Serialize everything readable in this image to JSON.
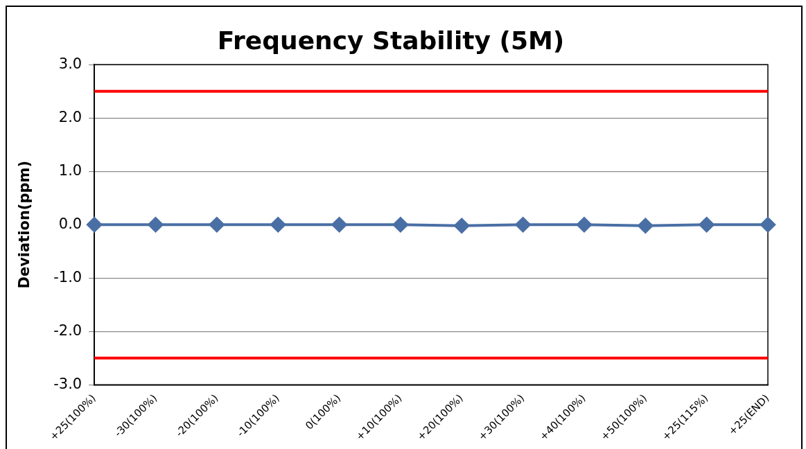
{
  "chart_data": {
    "type": "line",
    "title": "Frequency Stability (5M)",
    "ylabel": "Deviation(ppm)",
    "categories": [
      "+25(100%)",
      "-30(100%)",
      "-20(100%)",
      "-10(100%)",
      "0(100%)",
      "+10(100%)",
      "+20(100%)",
      "+30(100%)",
      "+40(100%)",
      "+50(100%)",
      "+25(115%)",
      "+25(END)"
    ],
    "series": [
      {
        "color": "#4a6fa5",
        "values": [
          0,
          0,
          0,
          0,
          0,
          0,
          -0.02,
          0,
          0,
          -0.02,
          0,
          0
        ]
      }
    ],
    "ylim": [
      -3,
      3
    ],
    "yticks": [
      {
        "value": -3,
        "label": "-3.0"
      },
      {
        "value": -2,
        "label": "-2.0"
      },
      {
        "value": -1,
        "label": "-1.0"
      },
      {
        "value": 0,
        "label": "0.0"
      },
      {
        "value": 1,
        "label": "1.0"
      },
      {
        "value": 2,
        "label": "2.0"
      },
      {
        "value": 3,
        "label": "3.0"
      }
    ],
    "ref_lines": [
      {
        "axis": "y",
        "value": 2.5,
        "color": "#ff0000"
      },
      {
        "axis": "y",
        "value": -2.5,
        "color": "#ff0000"
      }
    ],
    "grid": "y",
    "legend": false,
    "marker": "diamond",
    "line_style": "solid"
  }
}
